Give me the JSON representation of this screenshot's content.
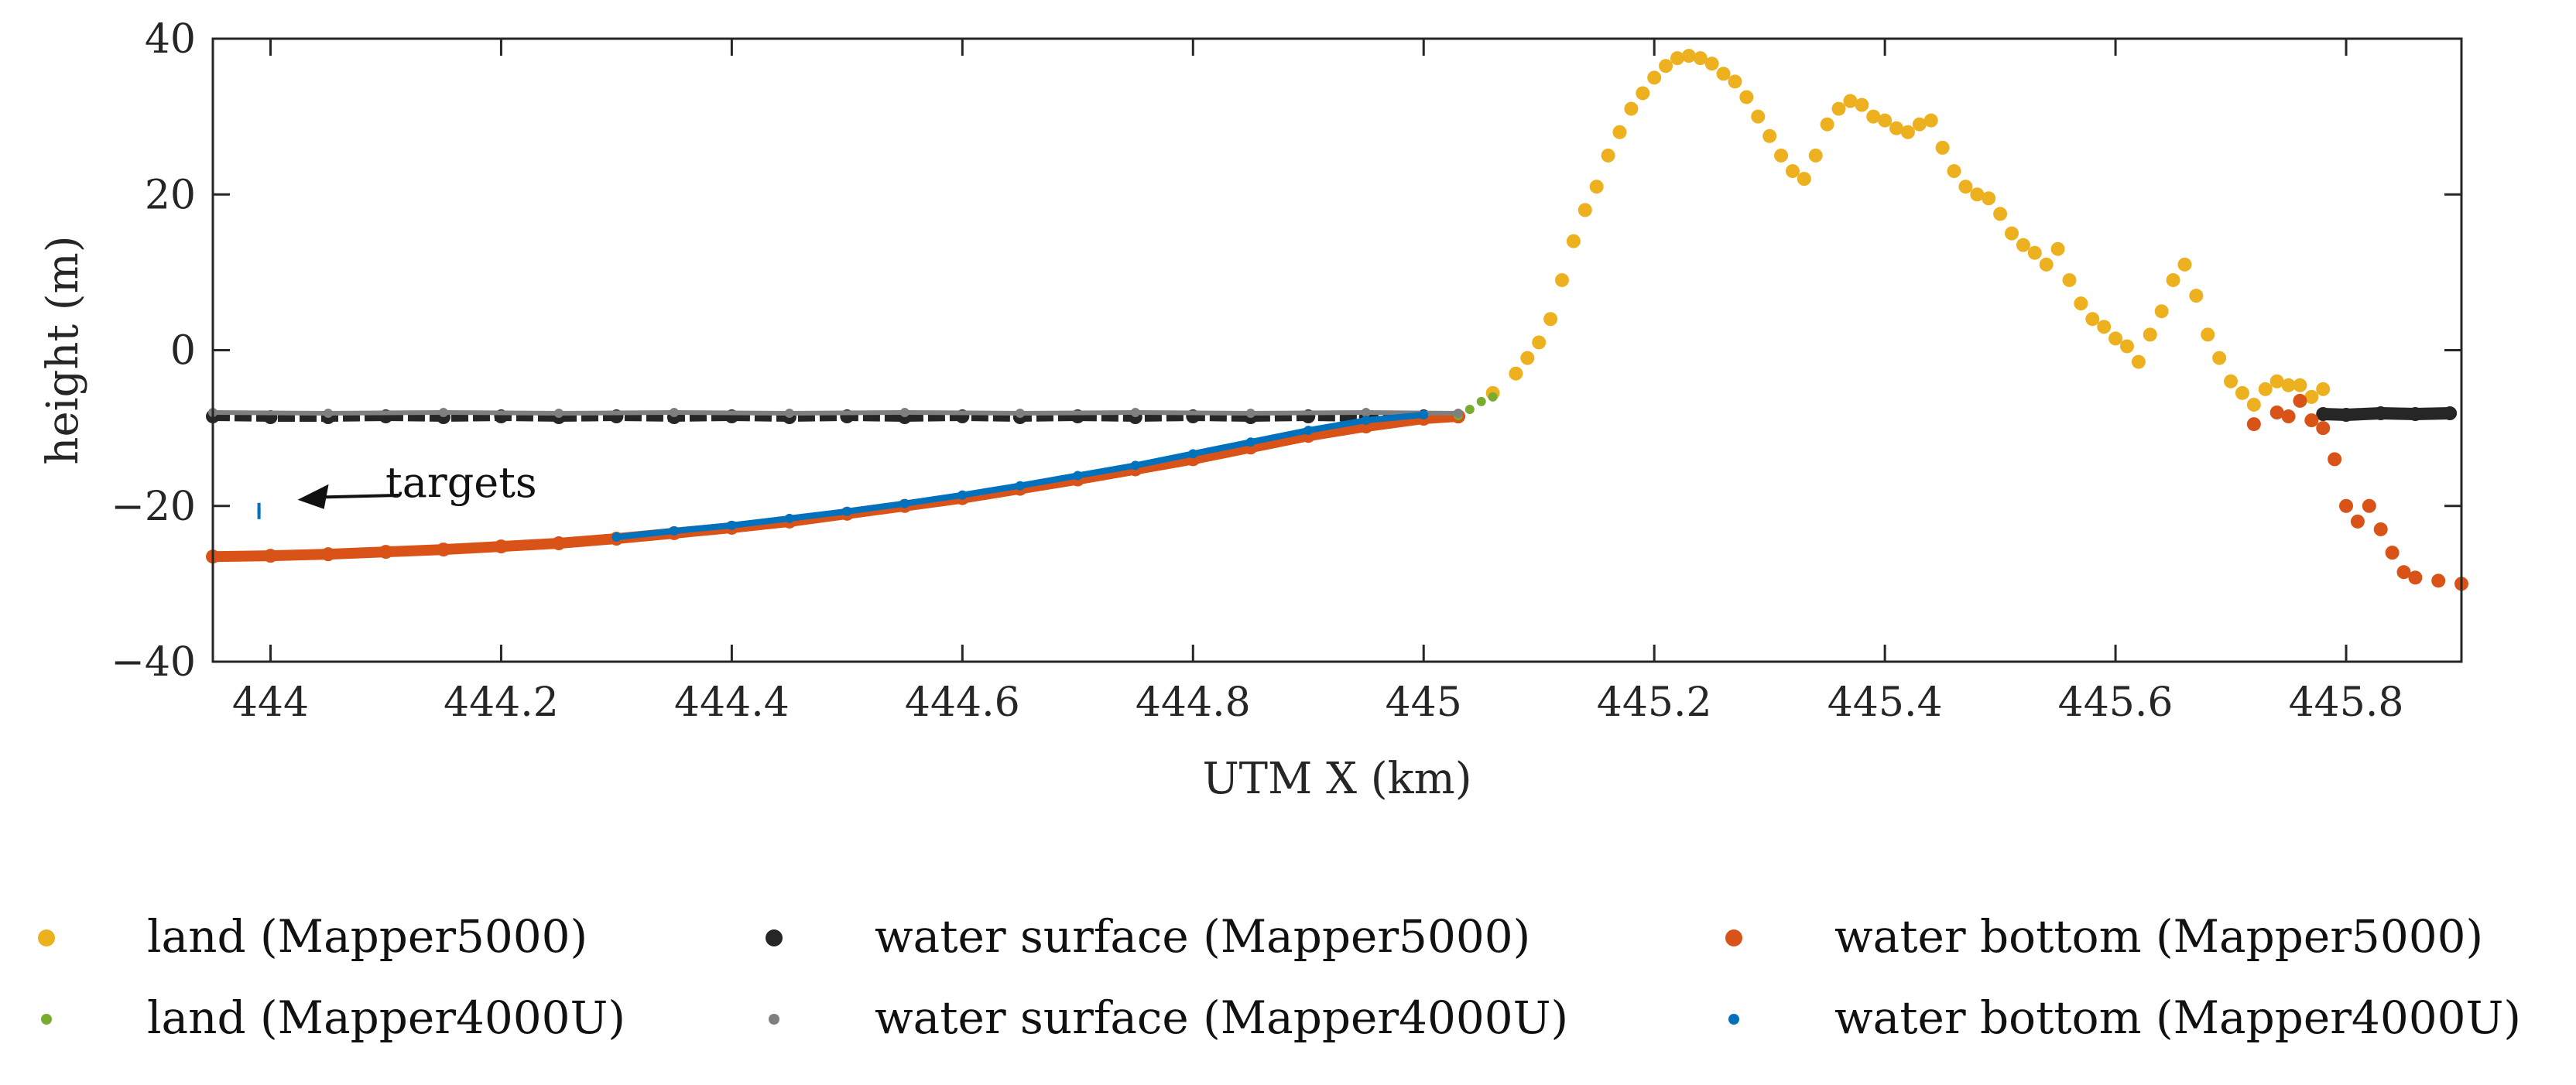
{
  "chart_data": {
    "type": "scatter",
    "title": "",
    "xlabel": "UTM X (km)",
    "ylabel": "height (m)",
    "xlim": [
      443.95,
      445.9
    ],
    "ylim": [
      -40,
      40
    ],
    "xticks": [
      444,
      444.2,
      444.4,
      444.6,
      444.8,
      445,
      445.2,
      445.4,
      445.6,
      445.8
    ],
    "xtick_labels": [
      "444",
      "444.2",
      "444.4",
      "444.6",
      "444.8",
      "445",
      "445.2",
      "445.4",
      "445.6",
      "445.8"
    ],
    "yticks": [
      -40,
      -20,
      0,
      20,
      40
    ],
    "ytick_labels": [
      "−40",
      "−20",
      "0",
      "20",
      "40"
    ],
    "grid": false,
    "legend_position": "bottom",
    "annotation": {
      "text": "targets",
      "x": 443.99,
      "y": -20
    },
    "series": [
      {
        "name": "land (Mapper5000)",
        "color": "#EDB120",
        "marker": "large",
        "points": [
          [
            445.06,
            -5.5
          ],
          [
            445.08,
            -3
          ],
          [
            445.09,
            -1
          ],
          [
            445.1,
            1
          ],
          [
            445.11,
            4
          ],
          [
            445.12,
            9
          ],
          [
            445.13,
            14
          ],
          [
            445.14,
            18
          ],
          [
            445.15,
            21
          ],
          [
            445.16,
            25
          ],
          [
            445.17,
            28
          ],
          [
            445.18,
            31
          ],
          [
            445.19,
            33
          ],
          [
            445.2,
            35
          ],
          [
            445.21,
            36.5
          ],
          [
            445.22,
            37.5
          ],
          [
            445.23,
            37.8
          ],
          [
            445.24,
            37.5
          ],
          [
            445.25,
            36.8
          ],
          [
            445.26,
            35.5
          ],
          [
            445.27,
            34.5
          ],
          [
            445.28,
            32.5
          ],
          [
            445.29,
            30
          ],
          [
            445.3,
            27.5
          ],
          [
            445.31,
            25
          ],
          [
            445.32,
            23
          ],
          [
            445.33,
            22
          ],
          [
            445.34,
            25
          ],
          [
            445.35,
            29
          ],
          [
            445.36,
            31
          ],
          [
            445.37,
            32
          ],
          [
            445.38,
            31.5
          ],
          [
            445.39,
            30
          ],
          [
            445.4,
            29.5
          ],
          [
            445.41,
            28.5
          ],
          [
            445.42,
            28
          ],
          [
            445.43,
            29
          ],
          [
            445.44,
            29.5
          ],
          [
            445.45,
            26
          ],
          [
            445.46,
            23
          ],
          [
            445.47,
            21
          ],
          [
            445.48,
            20
          ],
          [
            445.49,
            19.5
          ],
          [
            445.5,
            17.5
          ],
          [
            445.51,
            15
          ],
          [
            445.52,
            13.5
          ],
          [
            445.53,
            12.5
          ],
          [
            445.54,
            11
          ],
          [
            445.55,
            13
          ],
          [
            445.56,
            9
          ],
          [
            445.57,
            6
          ],
          [
            445.58,
            4
          ],
          [
            445.59,
            3
          ],
          [
            445.6,
            1.5
          ],
          [
            445.61,
            0.5
          ],
          [
            445.62,
            -1.5
          ],
          [
            445.63,
            2
          ],
          [
            445.64,
            5
          ],
          [
            445.65,
            9
          ],
          [
            445.66,
            11
          ],
          [
            445.67,
            7
          ],
          [
            445.68,
            2
          ],
          [
            445.69,
            -1
          ],
          [
            445.7,
            -4
          ],
          [
            445.71,
            -5.5
          ],
          [
            445.72,
            -7
          ],
          [
            445.73,
            -5
          ],
          [
            445.74,
            -4
          ],
          [
            445.75,
            -4.5
          ],
          [
            445.76,
            -4.5
          ],
          [
            445.77,
            -6
          ],
          [
            445.78,
            -5
          ]
        ]
      },
      {
        "name": "water surface (Mapper5000)",
        "color": "#262626",
        "marker": "large",
        "points": [
          [
            443.95,
            -8.5
          ],
          [
            444.0,
            -8.6
          ],
          [
            444.05,
            -8.6
          ],
          [
            444.1,
            -8.5
          ],
          [
            444.15,
            -8.6
          ],
          [
            444.2,
            -8.5
          ],
          [
            444.25,
            -8.6
          ],
          [
            444.3,
            -8.5
          ],
          [
            444.35,
            -8.6
          ],
          [
            444.4,
            -8.5
          ],
          [
            444.45,
            -8.6
          ],
          [
            444.5,
            -8.5
          ],
          [
            444.55,
            -8.6
          ],
          [
            444.6,
            -8.5
          ],
          [
            444.65,
            -8.6
          ],
          [
            444.7,
            -8.5
          ],
          [
            444.75,
            -8.6
          ],
          [
            444.8,
            -8.5
          ],
          [
            444.85,
            -8.6
          ],
          [
            444.9,
            -8.5
          ],
          [
            444.95,
            -8.6
          ],
          [
            445.0,
            -8.5
          ],
          [
            445.03,
            -8.5
          ],
          [
            445.78,
            -8.2
          ],
          [
            445.8,
            -8.3
          ],
          [
            445.83,
            -8.1
          ],
          [
            445.86,
            -8.2
          ],
          [
            445.89,
            -8.1
          ]
        ]
      },
      {
        "name": "water bottom (Mapper5000)",
        "color": "#D95319",
        "marker": "large",
        "points": [
          [
            443.95,
            -26.5
          ],
          [
            444.0,
            -26.4
          ],
          [
            444.05,
            -26.2
          ],
          [
            444.1,
            -25.9
          ],
          [
            444.15,
            -25.6
          ],
          [
            444.2,
            -25.2
          ],
          [
            444.25,
            -24.8
          ],
          [
            444.3,
            -24.2
          ],
          [
            444.35,
            -23.5
          ],
          [
            444.4,
            -22.8
          ],
          [
            444.45,
            -22
          ],
          [
            444.5,
            -21
          ],
          [
            444.55,
            -20
          ],
          [
            444.6,
            -19
          ],
          [
            444.65,
            -17.8
          ],
          [
            444.7,
            -16.6
          ],
          [
            444.75,
            -15.3
          ],
          [
            444.8,
            -14
          ],
          [
            444.85,
            -12.5
          ],
          [
            444.9,
            -11
          ],
          [
            444.95,
            -9.8
          ],
          [
            445.0,
            -8.8
          ],
          [
            445.03,
            -8.5
          ],
          [
            445.72,
            -9.5
          ],
          [
            445.74,
            -8
          ],
          [
            445.75,
            -8.5
          ],
          [
            445.76,
            -6.5
          ],
          [
            445.77,
            -9
          ],
          [
            445.78,
            -10
          ],
          [
            445.79,
            -14
          ],
          [
            445.8,
            -20
          ],
          [
            445.81,
            -22
          ],
          [
            445.82,
            -20
          ],
          [
            445.83,
            -23
          ],
          [
            445.84,
            -26
          ],
          [
            445.85,
            -28.5
          ],
          [
            445.86,
            -29.2
          ],
          [
            445.88,
            -29.6
          ],
          [
            445.9,
            -30
          ]
        ]
      },
      {
        "name": "land (Mapper4000U)",
        "color": "#77AC30",
        "marker": "small",
        "points": [
          [
            445.03,
            -8.4
          ],
          [
            445.04,
            -7.6
          ],
          [
            445.05,
            -6.6
          ],
          [
            445.06,
            -6
          ]
        ]
      },
      {
        "name": "water surface (Mapper4000U)",
        "color": "#7F7F7F",
        "marker": "small",
        "points": [
          [
            443.95,
            -8.0
          ],
          [
            444.05,
            -8.1
          ],
          [
            444.15,
            -8.0
          ],
          [
            444.25,
            -8.1
          ],
          [
            444.35,
            -8.0
          ],
          [
            444.45,
            -8.1
          ],
          [
            444.55,
            -8.0
          ],
          [
            444.65,
            -8.1
          ],
          [
            444.75,
            -8.0
          ],
          [
            444.85,
            -8.1
          ],
          [
            444.95,
            -8.0
          ],
          [
            445.03,
            -8.1
          ]
        ]
      },
      {
        "name": "water bottom (Mapper4000U)",
        "color": "#0072BD",
        "marker": "small",
        "points": [
          [
            443.99,
            -20.3
          ],
          [
            443.99,
            -21.0
          ],
          [
            444.3,
            -24
          ],
          [
            444.35,
            -23.2
          ],
          [
            444.4,
            -22.5
          ],
          [
            444.45,
            -21.6
          ],
          [
            444.5,
            -20.7
          ],
          [
            444.55,
            -19.7
          ],
          [
            444.6,
            -18.6
          ],
          [
            444.65,
            -17.4
          ],
          [
            444.7,
            -16.1
          ],
          [
            444.75,
            -14.8
          ],
          [
            444.8,
            -13.3
          ],
          [
            444.85,
            -11.8
          ],
          [
            444.9,
            -10.3
          ],
          [
            444.95,
            -9
          ],
          [
            445.0,
            -8.3
          ]
        ]
      }
    ]
  }
}
